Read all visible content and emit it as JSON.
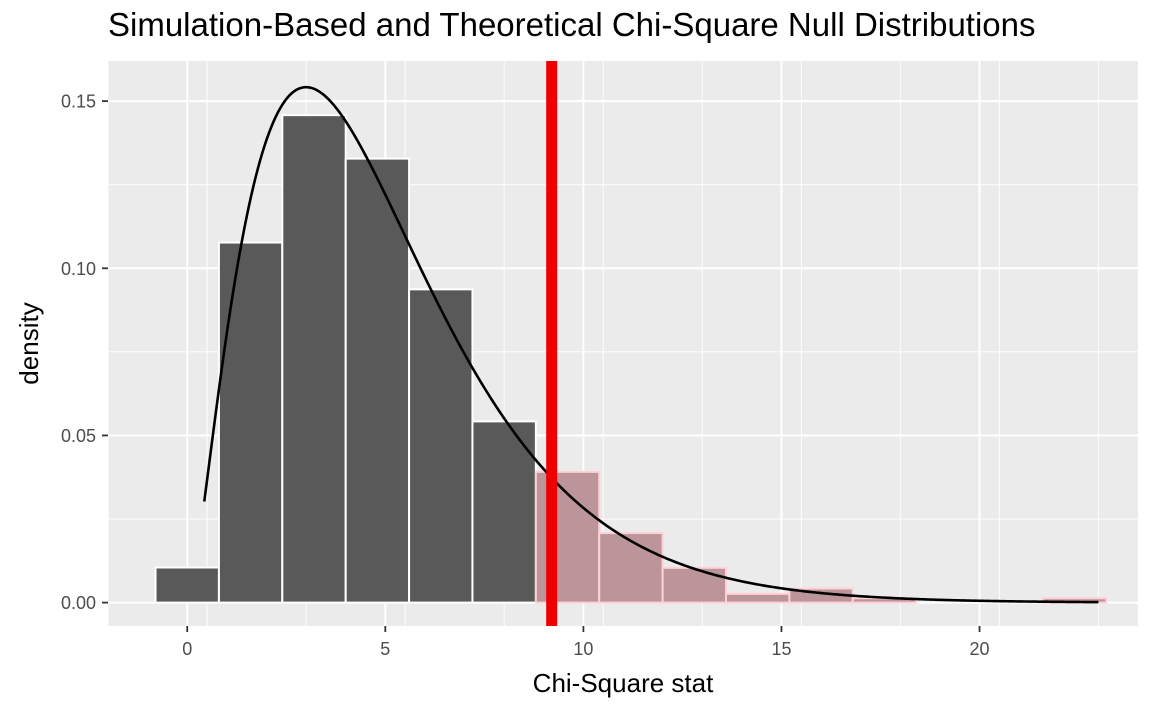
{
  "chart_data": {
    "type": "bar",
    "title": "Simulation-Based and Theoretical Chi-Square Null Distributions",
    "xlabel": "Chi-Square stat",
    "ylabel": "density",
    "xlim": [
      -2,
      24
    ],
    "ylim": [
      -0.007,
      0.162
    ],
    "grid": true,
    "x_ticks": [
      {
        "value": 0,
        "label": "0"
      },
      {
        "value": 5,
        "label": "5"
      },
      {
        "value": 10,
        "label": "10"
      },
      {
        "value": 15,
        "label": "15"
      },
      {
        "value": 20,
        "label": "20"
      }
    ],
    "y_ticks": [
      {
        "value": 0,
        "label": "0.00"
      },
      {
        "value": 0.05,
        "label": "0.05"
      },
      {
        "value": 0.1,
        "label": "0.10"
      },
      {
        "value": 0.15,
        "label": "0.15"
      }
    ],
    "bins": {
      "left_edges": [
        -0.8,
        0.8,
        2.4,
        4.0,
        5.6,
        7.2,
        8.8,
        10.4,
        12.0,
        13.6,
        15.2,
        16.8,
        18.4,
        20.0,
        21.6
      ],
      "width": 1.6,
      "density": [
        0.0105,
        0.1077,
        0.1458,
        0.1328,
        0.0937,
        0.0542,
        0.0391,
        0.0208,
        0.0104,
        0.0026,
        0.0042,
        0.0013,
        0.0,
        0.0,
        0.0013
      ]
    },
    "observed_stat": 9.2,
    "theoretical_curve": {
      "distribution": "chi-square",
      "df": 5,
      "x_range": [
        0.43,
        23.0
      ]
    },
    "colors": {
      "bar_fill": "#595959",
      "bar_border": "#ffffff",
      "shaded_fill": "#bc959b",
      "shaded_border": "#ffd0d6",
      "observed_line": "#ee0000",
      "curve": "#000000",
      "panel": "#ebebeb",
      "grid": "#ffffff"
    }
  }
}
